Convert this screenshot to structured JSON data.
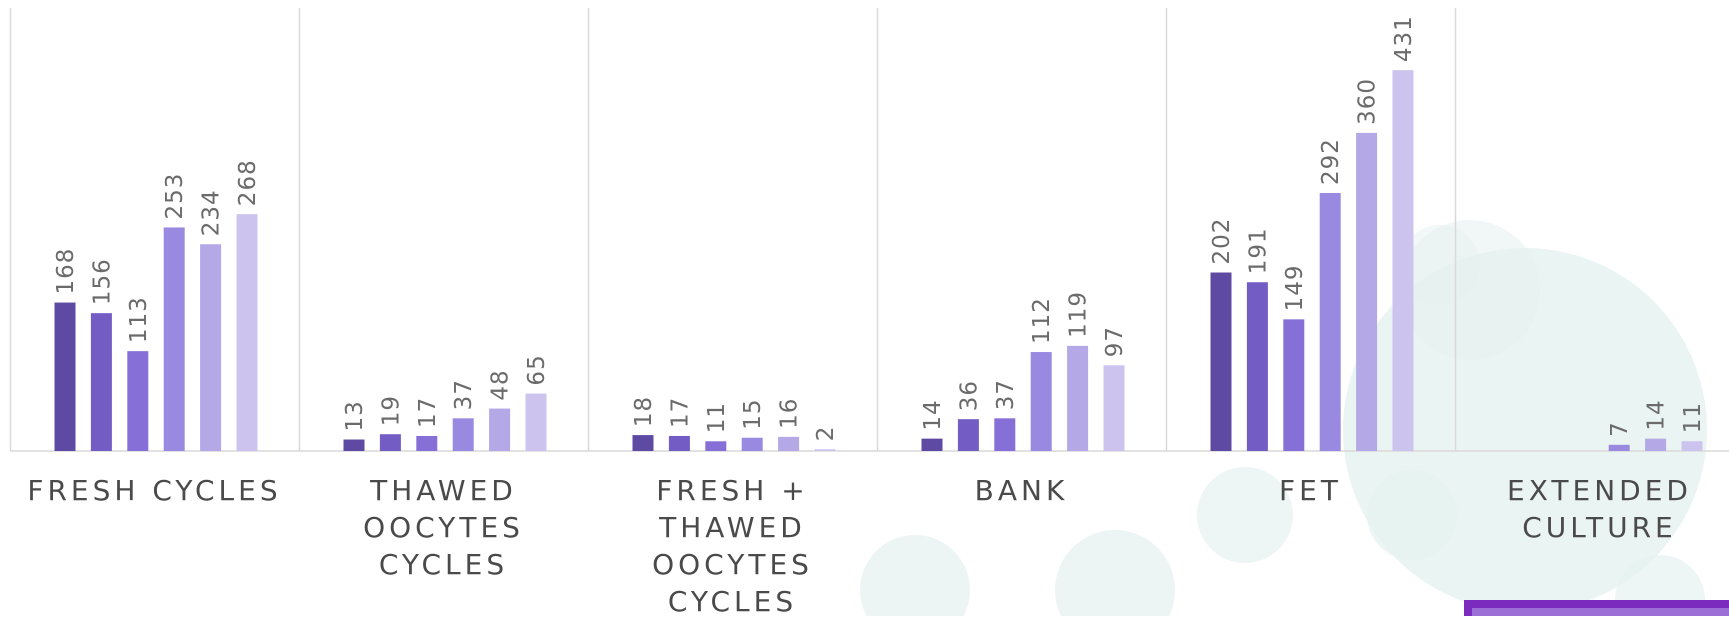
{
  "chart_data": {
    "type": "bar",
    "categories": [
      "FRESH CYCLES",
      "THAWED\nOOCYTES\nCYCLES",
      "FRESH +\nTHAWED\nOOCYTES\nCYCLES",
      "BANK",
      "FET",
      "EXTENDED\nCULTURE"
    ],
    "series": [
      {
        "values": [
          168,
          13,
          18,
          14,
          202,
          null
        ],
        "color": "#5e4aa3"
      },
      {
        "values": [
          156,
          19,
          17,
          36,
          191,
          null
        ],
        "color": "#735cc4"
      },
      {
        "values": [
          113,
          17,
          11,
          37,
          149,
          null
        ],
        "color": "#8670d8"
      },
      {
        "values": [
          253,
          37,
          15,
          112,
          292,
          7
        ],
        "color": "#9a89e0"
      },
      {
        "values": [
          234,
          48,
          16,
          119,
          360,
          14
        ],
        "color": "#b5a8e6"
      },
      {
        "values": [
          268,
          65,
          2,
          97,
          431,
          11
        ],
        "color": "#ccc3ef"
      }
    ],
    "ylim": [
      0,
      500
    ],
    "grid": false,
    "legend": "none",
    "colors": {
      "separator": "#d9d9d9",
      "value_label": "#6b6b6b",
      "category_label": "#4a4a4a",
      "decor_circle": "#e6f2f0",
      "corner_box": "#7b2cbf"
    }
  }
}
